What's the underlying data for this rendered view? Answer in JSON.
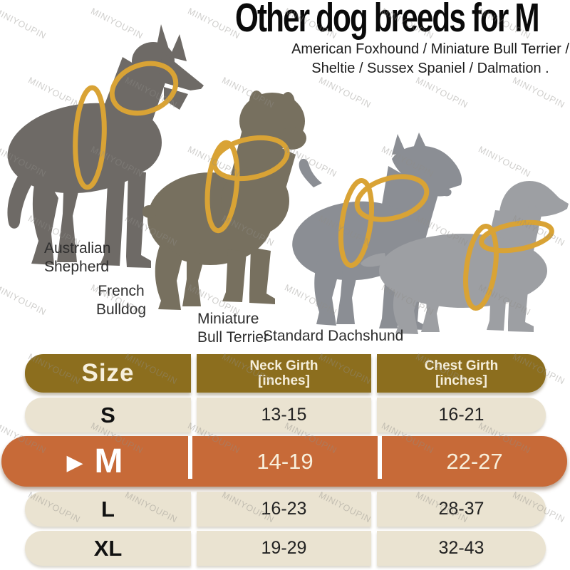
{
  "header": {
    "title": "Other dog breeds for M",
    "subtitle_line1": "American Foxhound / Miniature Bull Terrier /",
    "subtitle_line2": "Sheltie / Sussex Spaniel / Dalmation ."
  },
  "watermark": "MINIYOUPIN",
  "icons": {
    "selected_row_marker": "▶"
  },
  "dogs": [
    {
      "label_line1": "Australian",
      "label_line2": "Shepherd"
    },
    {
      "label_line1": "French",
      "label_line2": "Bulldog"
    },
    {
      "label_line1": "Miniature",
      "label_line2": "Bull Terrier"
    },
    {
      "label_line1": "Standard Dachshund",
      "label_line2": ""
    }
  ],
  "size_chart": {
    "col_headers": [
      {
        "line1": "Size",
        "line2": ""
      },
      {
        "line1": "Neck Girth",
        "line2": "[inches]"
      },
      {
        "line1": "Chest Girth",
        "line2": "[inches]"
      }
    ],
    "rows": [
      {
        "size": "S",
        "neck": "13-15",
        "chest": "16-21"
      },
      {
        "size": "M",
        "neck": "14-19",
        "chest": "22-27"
      },
      {
        "size": "L",
        "neck": "16-23",
        "chest": "28-37"
      },
      {
        "size": "XL",
        "neck": "19-29",
        "chest": "32-43"
      }
    ],
    "highlighted_size": "M"
  },
  "colors": {
    "table_header_gold": "#8c6e1e",
    "table_row_cream": "#eae3d1",
    "highlight_orange": "#c76a38",
    "harness_ring_gold": "#d9a335",
    "dog_australian_shepherd": "#6e6a66",
    "dog_french_bulldog": "#77705f",
    "dog_miniature_bull_terrier": "#8b8e94",
    "dog_standard_dachshund": "#9d9fa3"
  },
  "chart_data": {
    "type": "table",
    "title": "Other dog breeds for M",
    "columns": [
      "Size",
      "Neck Girth [inches]",
      "Chest Girth [inches]"
    ],
    "rows": [
      [
        "S",
        "13-15",
        "16-21"
      ],
      [
        "M",
        "14-19",
        "22-27"
      ],
      [
        "L",
        "16-23",
        "28-37"
      ],
      [
        "XL",
        "19-29",
        "32-43"
      ]
    ],
    "highlighted_row": "M"
  }
}
